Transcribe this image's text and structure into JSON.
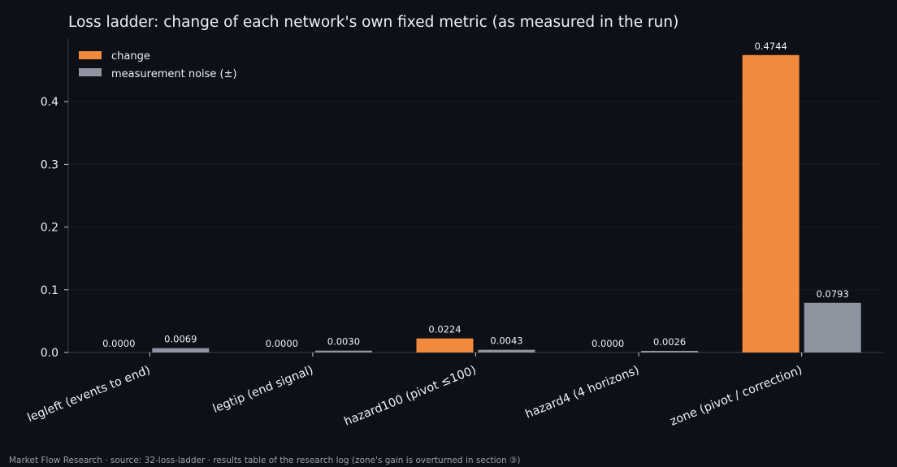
{
  "chart_data": {
    "type": "bar",
    "title": "Loss ladder: change of each network's own fixed metric (as measured in the run)",
    "categories": [
      "legleft (events to end)",
      "legtip (end signal)",
      "hazard100 (pivot ≤100)",
      "hazard4 (4 horizons)",
      "zone (pivot / correction)"
    ],
    "series": [
      {
        "name": "change",
        "color": "#f28a3d",
        "values": [
          0.0,
          0.0,
          0.0224,
          0.0,
          0.4744
        ],
        "labels": [
          "0.0000",
          "0.0000",
          "0.0224",
          "0.0000",
          "0.4744"
        ]
      },
      {
        "name": "measurement noise (±)",
        "color": "#8e95a0",
        "values": [
          0.0069,
          0.003,
          0.0043,
          0.0026,
          0.0793
        ],
        "labels": [
          "0.0069",
          "0.0030",
          "0.0043",
          "0.0026",
          "0.0793"
        ]
      }
    ],
    "ylim": [
      0,
      0.5
    ],
    "yticks": [
      0.0,
      0.1,
      0.2,
      0.3,
      0.4
    ],
    "ytick_labels": [
      "0.0",
      "0.1",
      "0.2",
      "0.3",
      "0.4"
    ],
    "xlabel": "",
    "ylabel": "",
    "grid": true,
    "legend_position": "top-left"
  },
  "footer": "Market Flow Research · source: 32-loss-ladder · results table of the research log (zone's gain is overturned in section ③)",
  "colors": {
    "background": "#0d1017",
    "axis": "#3a3f48",
    "grid": "#161b24",
    "text": "#eef0f4"
  }
}
